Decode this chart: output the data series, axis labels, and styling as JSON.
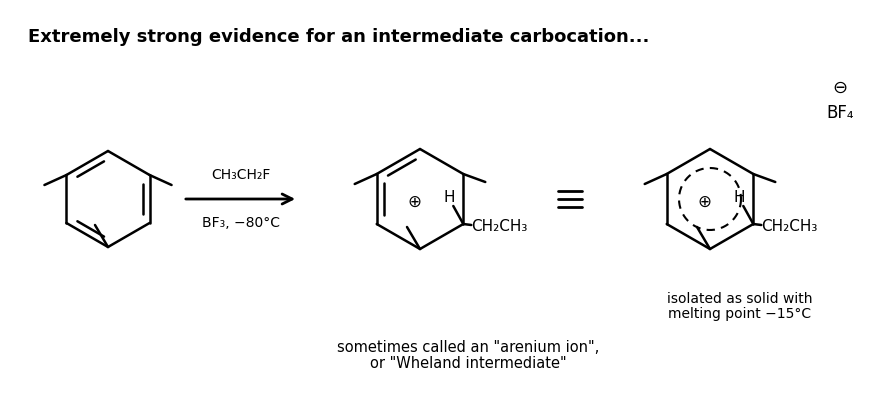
{
  "title": "Extremely strong evidence for an intermediate carbocation...",
  "title_fontsize": 13,
  "title_bold": true,
  "bg_color": "#ffffff",
  "text_color": "#000000",
  "reagent_text": "CH₃CH₂F",
  "reagent_text2": "BF₃, −80°C",
  "annotation1_line1": "sometimes called an \"arenium ion\",",
  "annotation1_line2": "or \"Wheland intermediate\"",
  "annotation2_line1": "isolated as solid with",
  "annotation2_line2": "melting point −15°C",
  "equiv_symbol": "≡",
  "bf4_text": "BF₄",
  "minus_symbol": "⊖",
  "plus_symbol": "⊕"
}
